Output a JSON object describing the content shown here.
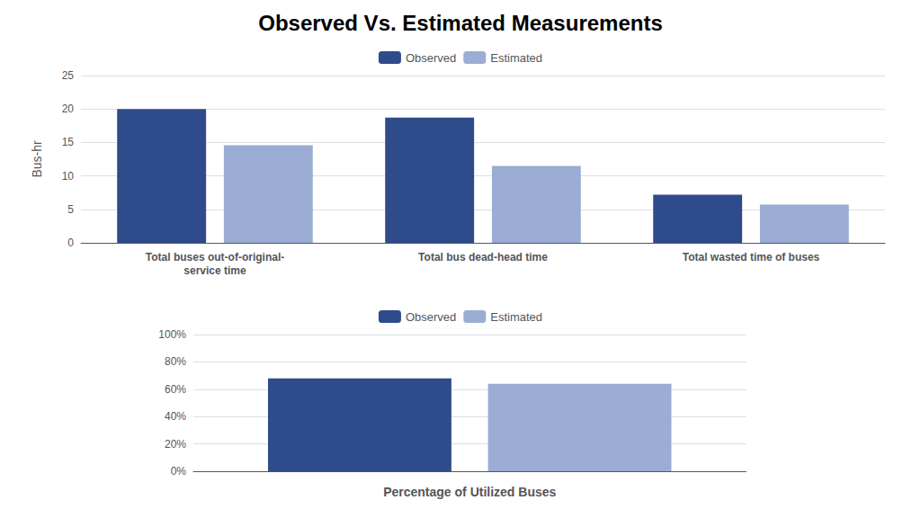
{
  "chart_data": [
    {
      "type": "bar",
      "title": "Observed Vs. Estimated Measurements",
      "categories": [
        "Total buses out-of-original-\nservice time",
        "Total bus dead-head time",
        "Total wasted time of buses"
      ],
      "series": [
        {
          "name": "Observed",
          "color": "#2E4B8B",
          "values": [
            20.0,
            18.7,
            7.2
          ]
        },
        {
          "name": "Estimated",
          "color": "#9BADD4",
          "values": [
            14.6,
            11.5,
            5.7
          ]
        }
      ],
      "ylabel": "Bus-hr",
      "ylim": [
        0,
        25
      ],
      "yticks": [
        0,
        5,
        10,
        15,
        20,
        25
      ],
      "grid": true,
      "legend": "upper center"
    },
    {
      "type": "bar",
      "categories": [
        null
      ],
      "series": [
        {
          "name": "Observed",
          "color": "#2E4B8B",
          "values": [
            0.68
          ]
        },
        {
          "name": "Estimated",
          "color": "#9BADD4",
          "values": [
            0.64
          ]
        }
      ],
      "xlabel": "Percentage of Utilized Buses",
      "ylim": [
        0,
        1.0
      ],
      "yticks": [
        {
          "value": 0,
          "label": "0%"
        },
        {
          "value": 0.2,
          "label": "20%"
        },
        {
          "value": 0.4,
          "label": "40%"
        },
        {
          "value": 0.6,
          "label": "60%"
        },
        {
          "value": 0.8,
          "label": "80%"
        },
        {
          "value": 1.0,
          "label": "100%"
        }
      ],
      "grid": true,
      "legend": "upper center",
      "tick_labels": "y"
    }
  ]
}
